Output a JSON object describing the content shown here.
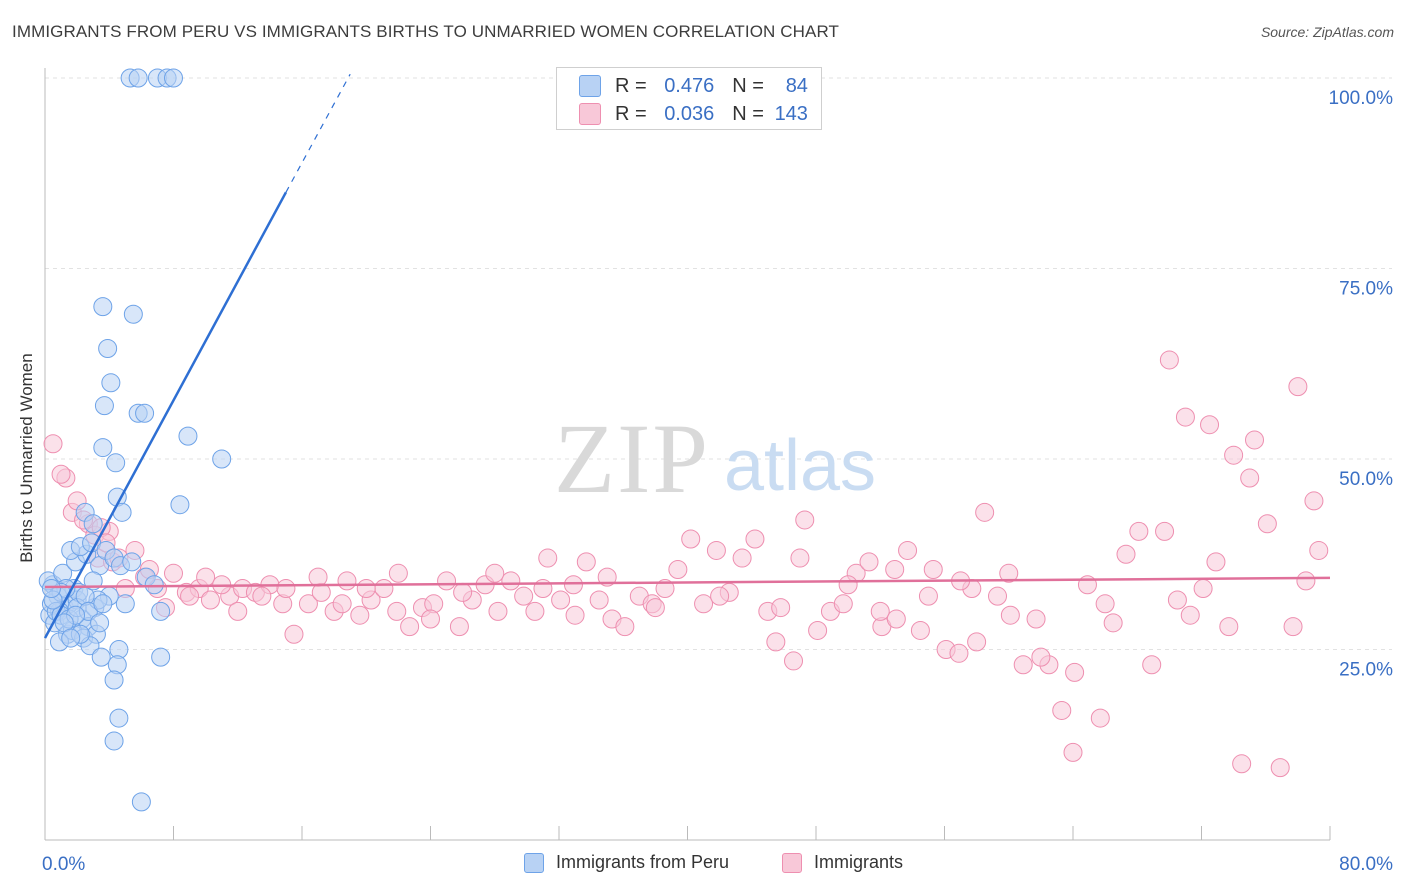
{
  "title": "IMMIGRANTS FROM PERU VS IMMIGRANTS BIRTHS TO UNMARRIED WOMEN CORRELATION CHART",
  "source": "Source: ZipAtlas.com",
  "watermark": {
    "zip": "ZIP",
    "atlas": "atlas"
  },
  "chart_data": {
    "type": "scatter",
    "xlabel": "",
    "ylabel": "Births to Unmarried Women",
    "xlim": [
      0,
      80
    ],
    "ylim": [
      0,
      100
    ],
    "x_tick_labels": [
      "0.0%",
      "80.0%"
    ],
    "y_tick_values": [
      25,
      50,
      75,
      100
    ],
    "y_tick_labels": [
      "25.0%",
      "50.0%",
      "75.0%",
      "100.0%"
    ],
    "legend_position": "bottom",
    "series": [
      {
        "name": "Immigrants from Peru",
        "color": "#6ea3e8",
        "fill": "#b8d2f4",
        "line_color": "#2e6fd3",
        "R": "0.476",
        "N": "84",
        "trend": {
          "x0": 0.0,
          "y0": 26.5,
          "x1": 15.0,
          "y1": 85.0,
          "dash_x1": 19.0,
          "dash_y1": 100.5
        },
        "points": [
          [
            5.3,
            100
          ],
          [
            5.8,
            100
          ],
          [
            7.0,
            100
          ],
          [
            7.6,
            100
          ],
          [
            8.0,
            100
          ],
          [
            3.6,
            70
          ],
          [
            5.5,
            69
          ],
          [
            3.9,
            64.5
          ],
          [
            4.1,
            60
          ],
          [
            5.8,
            56
          ],
          [
            6.2,
            56
          ],
          [
            3.7,
            57
          ],
          [
            8.9,
            53
          ],
          [
            3.6,
            51.5
          ],
          [
            4.4,
            49.5
          ],
          [
            11.0,
            50
          ],
          [
            8.4,
            44
          ],
          [
            4.5,
            45
          ],
          [
            4.8,
            43
          ],
          [
            2.5,
            43
          ],
          [
            3.0,
            41.5
          ],
          [
            0.5,
            33.5
          ],
          [
            0.8,
            32
          ],
          [
            1.2,
            30.5
          ],
          [
            0.3,
            29.5
          ],
          [
            1.5,
            31
          ],
          [
            0.9,
            30
          ],
          [
            0.6,
            28.5
          ],
          [
            1.8,
            33
          ],
          [
            2.0,
            31.5
          ],
          [
            2.3,
            29
          ],
          [
            1.4,
            27
          ],
          [
            2.7,
            28
          ],
          [
            3.1,
            30.5
          ],
          [
            0.2,
            34
          ],
          [
            1.1,
            35
          ],
          [
            1.9,
            36.5
          ],
          [
            2.6,
            37.5
          ],
          [
            3.4,
            36
          ],
          [
            1.6,
            38
          ],
          [
            2.2,
            38.5
          ],
          [
            2.9,
            39
          ],
          [
            3.8,
            38
          ],
          [
            4.3,
            37
          ],
          [
            4.7,
            36
          ],
          [
            5.4,
            36.5
          ],
          [
            6.3,
            34.5
          ],
          [
            6.8,
            33.5
          ],
          [
            7.2,
            30
          ],
          [
            5.0,
            31
          ],
          [
            4.0,
            32
          ],
          [
            3.3,
            31.5
          ],
          [
            2.1,
            32.5
          ],
          [
            1.3,
            33
          ],
          [
            0.4,
            31
          ],
          [
            0.7,
            30
          ],
          [
            1.0,
            29.5
          ],
          [
            1.7,
            27.5
          ],
          [
            2.4,
            26.5
          ],
          [
            3.2,
            27
          ],
          [
            0.9,
            26
          ],
          [
            2.8,
            25.5
          ],
          [
            3.5,
            24
          ],
          [
            4.6,
            25
          ],
          [
            4.5,
            23
          ],
          [
            7.2,
            24
          ],
          [
            4.3,
            21
          ],
          [
            4.6,
            16
          ],
          [
            4.3,
            13
          ],
          [
            6.0,
            5
          ],
          [
            1.5,
            29
          ],
          [
            2.0,
            30.5
          ],
          [
            2.5,
            32
          ],
          [
            3.0,
            34
          ],
          [
            1.0,
            32.5
          ],
          [
            0.5,
            31.5
          ],
          [
            2.7,
            30
          ],
          [
            3.6,
            31
          ],
          [
            1.9,
            29.5
          ],
          [
            1.2,
            28.5
          ],
          [
            0.4,
            33
          ],
          [
            2.2,
            27
          ],
          [
            3.4,
            28.5
          ],
          [
            1.6,
            26.5
          ]
        ]
      },
      {
        "name": "Immigrants",
        "color": "#ee8fb0",
        "fill": "#f8c8d8",
        "line_color": "#e0709a",
        "R": "0.036",
        "N": "143",
        "trend": {
          "x0": 0.0,
          "y0": 33.2,
          "x1": 80.0,
          "y1": 34.4
        },
        "points": [
          [
            0.5,
            52
          ],
          [
            1.3,
            47.5
          ],
          [
            1.7,
            43
          ],
          [
            2.7,
            41.5
          ],
          [
            3.1,
            40
          ],
          [
            2.4,
            42
          ],
          [
            3.3,
            37
          ],
          [
            4.2,
            36.5
          ],
          [
            4.6,
            37
          ],
          [
            5.6,
            38
          ],
          [
            6.2,
            34.5
          ],
          [
            7.0,
            33
          ],
          [
            8.0,
            35
          ],
          [
            8.8,
            32.5
          ],
          [
            9.6,
            33
          ],
          [
            10.0,
            34.5
          ],
          [
            10.3,
            31.5
          ],
          [
            11.5,
            32
          ],
          [
            12.3,
            33
          ],
          [
            13.1,
            32.5
          ],
          [
            14.0,
            33.5
          ],
          [
            14.8,
            31
          ],
          [
            15.5,
            27
          ],
          [
            16.4,
            31
          ],
          [
            17.2,
            32.5
          ],
          [
            18.0,
            30
          ],
          [
            18.8,
            34
          ],
          [
            19.6,
            29.5
          ],
          [
            20.3,
            31.5
          ],
          [
            21.1,
            33
          ],
          [
            21.9,
            30
          ],
          [
            22.7,
            28
          ],
          [
            23.5,
            30.5
          ],
          [
            24.2,
            31
          ],
          [
            25.0,
            34
          ],
          [
            25.8,
            28
          ],
          [
            26.6,
            31.5
          ],
          [
            27.4,
            33.5
          ],
          [
            28.2,
            30
          ],
          [
            29.0,
            34
          ],
          [
            29.8,
            32
          ],
          [
            30.5,
            30
          ],
          [
            31.3,
            37
          ],
          [
            32.1,
            31.5
          ],
          [
            32.9,
            33.5
          ],
          [
            33.7,
            36.5
          ],
          [
            34.5,
            31.5
          ],
          [
            35.3,
            29
          ],
          [
            36.1,
            28
          ],
          [
            37.0,
            32
          ],
          [
            37.8,
            31
          ],
          [
            38.6,
            33
          ],
          [
            39.4,
            35.5
          ],
          [
            40.2,
            39.5
          ],
          [
            41.0,
            31
          ],
          [
            41.8,
            38
          ],
          [
            42.6,
            32.5
          ],
          [
            43.4,
            37
          ],
          [
            44.2,
            39.5
          ],
          [
            45.0,
            30
          ],
          [
            45.8,
            30.5
          ],
          [
            46.6,
            23.5
          ],
          [
            47.3,
            42
          ],
          [
            48.1,
            27.5
          ],
          [
            48.9,
            30
          ],
          [
            49.7,
            31
          ],
          [
            50.5,
            35
          ],
          [
            51.3,
            36.5
          ],
          [
            52.1,
            28
          ],
          [
            52.9,
            35.5
          ],
          [
            53.7,
            38
          ],
          [
            54.5,
            27.5
          ],
          [
            55.3,
            35.5
          ],
          [
            56.1,
            25
          ],
          [
            56.9,
            24.5
          ],
          [
            57.7,
            33
          ],
          [
            58.5,
            43
          ],
          [
            59.3,
            32
          ],
          [
            60.1,
            29.5
          ],
          [
            60.9,
            23
          ],
          [
            61.7,
            29
          ],
          [
            62.5,
            23
          ],
          [
            63.3,
            17
          ],
          [
            64.1,
            22
          ],
          [
            64.9,
            33.5
          ],
          [
            65.7,
            16
          ],
          [
            66.5,
            28.5
          ],
          [
            67.3,
            37.5
          ],
          [
            68.1,
            40.5
          ],
          [
            68.9,
            23
          ],
          [
            69.7,
            40.5
          ],
          [
            70.5,
            31.5
          ],
          [
            71.3,
            29.5
          ],
          [
            72.1,
            33
          ],
          [
            72.9,
            36.5
          ],
          [
            73.7,
            28
          ],
          [
            74.5,
            10
          ],
          [
            75.3,
            52.5
          ],
          [
            76.1,
            41.5
          ],
          [
            76.9,
            9.5
          ],
          [
            77.7,
            28
          ],
          [
            78.5,
            34
          ],
          [
            79.3,
            38
          ],
          [
            64.0,
            11.5
          ],
          [
            52.0,
            30
          ],
          [
            60.0,
            35
          ],
          [
            62.0,
            24
          ],
          [
            66.0,
            31
          ],
          [
            58.0,
            26
          ],
          [
            55.0,
            32
          ],
          [
            42.0,
            32
          ],
          [
            38.0,
            30.5
          ],
          [
            35.0,
            34.5
          ],
          [
            33.0,
            29.5
          ],
          [
            31.0,
            33
          ],
          [
            28.0,
            35
          ],
          [
            26.0,
            32.5
          ],
          [
            24.0,
            29
          ],
          [
            22.0,
            35
          ],
          [
            20.0,
            33
          ],
          [
            18.5,
            31
          ],
          [
            17.0,
            34.5
          ],
          [
            15.0,
            33
          ],
          [
            13.5,
            32
          ],
          [
            12.0,
            30
          ],
          [
            11.0,
            33.5
          ],
          [
            9.0,
            32
          ],
          [
            7.5,
            30.5
          ],
          [
            6.5,
            35.5
          ],
          [
            5.0,
            33
          ],
          [
            4.0,
            40.5
          ],
          [
            3.5,
            41
          ],
          [
            2.0,
            44.5
          ],
          [
            1.0,
            48
          ],
          [
            3.8,
            39
          ],
          [
            45.5,
            26
          ],
          [
            47.0,
            37
          ],
          [
            50.0,
            33.5
          ],
          [
            53.0,
            29
          ],
          [
            57.0,
            34
          ]
        ]
      }
    ],
    "extra_pink_points_right": [
      [
        70.0,
        63
      ],
      [
        71.0,
        55.5
      ],
      [
        72.5,
        54.5
      ],
      [
        74.0,
        50.5
      ],
      [
        75.0,
        47.5
      ],
      [
        78.0,
        59.5
      ],
      [
        79.0,
        44.5
      ]
    ]
  },
  "stats_legend": {
    "row1": {
      "r_label": "R =",
      "r_value": "0.476",
      "n_label": "N =",
      "n_value": "84"
    },
    "row2": {
      "r_label": "R =",
      "r_value": "0.036",
      "n_label": "N =",
      "n_value": "143"
    }
  },
  "bottom_legend": {
    "item1": "Immigrants from Peru",
    "item2": "Immigrants"
  }
}
